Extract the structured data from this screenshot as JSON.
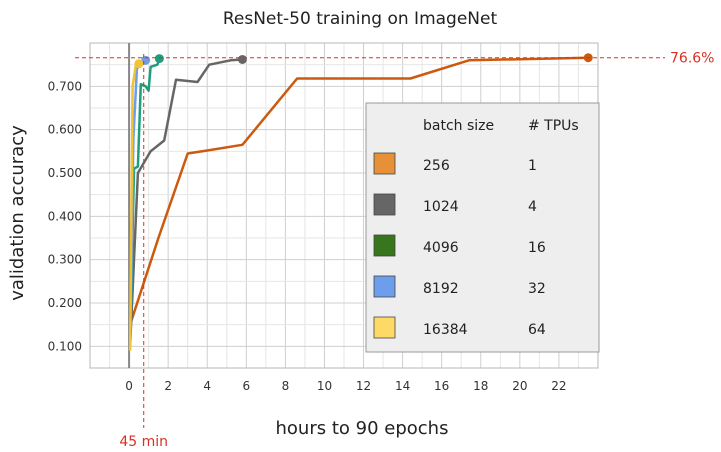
{
  "chart_data": {
    "type": "line",
    "title": "ResNet-50 training on ImageNet",
    "xlabel": "hours to 90 epochs",
    "ylabel": "validation accuracy",
    "xlim": [
      -2,
      24
    ],
    "ylim": [
      0.05,
      0.8
    ],
    "x_ticks": [
      "0",
      "2",
      "4",
      "6",
      "8",
      "10",
      "12",
      "14",
      "16",
      "18",
      "20",
      "22"
    ],
    "y_ticks": [
      "0.100",
      "0.200",
      "0.300",
      "0.400",
      "0.500",
      "0.600",
      "0.700"
    ],
    "grid": true,
    "legend_position": "right",
    "legend_header": {
      "batch_size": "batch size",
      "tpus": "# TPUs"
    },
    "reference_lines": {
      "horizontal": {
        "value": 0.766,
        "label": "76.6%"
      },
      "vertical": {
        "value": 0.75,
        "label": "45 min"
      }
    },
    "series": [
      {
        "batch_size": "256",
        "tpus": "1",
        "color": "#e69138",
        "points": [
          [
            0.05,
            0.15
          ],
          [
            1.5,
            0.35
          ],
          [
            3.0,
            0.545
          ],
          [
            4.0,
            0.552
          ],
          [
            5.8,
            0.565
          ],
          [
            8.6,
            0.718
          ],
          [
            14.4,
            0.718
          ],
          [
            17.4,
            0.76
          ],
          [
            23.5,
            0.766
          ]
        ]
      },
      {
        "batch_size": "1024",
        "tpus": "4",
        "color": "#666666",
        "points": [
          [
            0.05,
            0.1
          ],
          [
            0.45,
            0.5
          ],
          [
            1.1,
            0.55
          ],
          [
            1.8,
            0.575
          ],
          [
            2.4,
            0.715
          ],
          [
            3.5,
            0.71
          ],
          [
            4.1,
            0.75
          ],
          [
            5.2,
            0.76
          ],
          [
            5.8,
            0.762
          ]
        ]
      },
      {
        "batch_size": "4096",
        "tpus": "16",
        "color": "#38761d",
        "points": [
          [
            0.05,
            0.1
          ],
          [
            0.25,
            0.51
          ],
          [
            0.45,
            0.515
          ],
          [
            0.6,
            0.705
          ],
          [
            0.85,
            0.7
          ],
          [
            1.0,
            0.69
          ],
          [
            1.1,
            0.745
          ],
          [
            1.45,
            0.75
          ],
          [
            1.55,
            0.764
          ]
        ]
      },
      {
        "batch_size": "8192",
        "tpus": "32",
        "color": "#6d9eeb",
        "points": [
          [
            0.05,
            0.1
          ],
          [
            0.22,
            0.58
          ],
          [
            0.4,
            0.74
          ],
          [
            0.6,
            0.755
          ],
          [
            0.85,
            0.76
          ]
        ]
      },
      {
        "batch_size": "16384",
        "tpus": "64",
        "color": "#ffd966",
        "points": [
          [
            0.05,
            0.09
          ],
          [
            0.18,
            0.7
          ],
          [
            0.35,
            0.75
          ],
          [
            0.5,
            0.752
          ]
        ]
      }
    ]
  },
  "colors": {
    "reference": "#d93025",
    "lines": {
      "256": "#cc5a0e",
      "1024": "#666666",
      "4096": "#1f9e7e",
      "8192": "#6d9eeb",
      "16384": "#f1c232"
    }
  }
}
